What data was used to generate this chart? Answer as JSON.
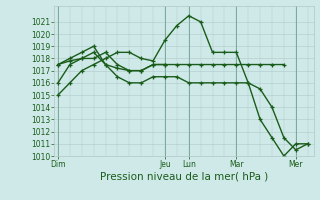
{
  "xlabel": "Pression niveau de la mer( hPa )",
  "bg_color": "#cee9e8",
  "grid_color": "#b0c8c8",
  "line_color": "#1a5c1a",
  "ylim": [
    1010,
    1022
  ],
  "yticks": [
    1010,
    1011,
    1012,
    1013,
    1014,
    1015,
    1016,
    1017,
    1018,
    1019,
    1020,
    1021
  ],
  "day_labels": [
    "Dim",
    "Jeu",
    "Lun",
    "Mar",
    "Mer"
  ],
  "day_tick_x": [
    0,
    9,
    11,
    15,
    20
  ],
  "vline_x": [
    0,
    9,
    11,
    15,
    20
  ],
  "n_points": 22,
  "lines": [
    {
      "x": [
        0,
        1,
        2,
        3,
        4,
        5,
        6,
        7,
        8,
        9,
        10,
        11,
        12,
        13,
        14,
        15,
        16,
        17,
        18,
        19,
        20,
        21
      ],
      "y": [
        1015,
        1016,
        1017,
        1017.5,
        1018,
        1018.5,
        1018.5,
        1018,
        1017.8,
        1019.5,
        1020.7,
        1021.5,
        1021,
        1018.5,
        1018.5,
        1018.5,
        1016,
        1015.5,
        1014,
        1011.5,
        1010.5,
        1011
      ]
    },
    {
      "x": [
        0,
        1,
        2,
        3,
        4,
        5,
        6,
        7,
        8,
        9,
        10,
        11,
        12,
        13,
        14,
        15,
        16,
        17,
        18,
        19
      ],
      "y": [
        1016,
        1017.5,
        1018,
        1018,
        1018.5,
        1017.5,
        1017,
        1017,
        1017.5,
        1017.5,
        1017.5,
        1017.5,
        1017.5,
        1017.5,
        1017.5,
        1017.5,
        1017.5,
        1017.5,
        1017.5,
        1017.5
      ]
    },
    {
      "x": [
        0,
        1,
        2,
        3,
        4,
        5,
        6,
        7,
        8,
        9
      ],
      "y": [
        1017.5,
        1017.8,
        1018,
        1018.5,
        1017.5,
        1017.2,
        1017,
        1017,
        1017.5,
        1017.5
      ]
    },
    {
      "x": [
        0,
        1,
        2,
        3,
        4,
        5,
        6,
        7,
        8,
        9,
        10,
        11,
        12,
        13,
        14,
        15,
        16,
        17,
        18,
        19,
        20,
        21
      ],
      "y": [
        1017.5,
        1018,
        1018.5,
        1019,
        1017.5,
        1016.5,
        1016,
        1016,
        1016.5,
        1016.5,
        1016.5,
        1016,
        1016,
        1016,
        1016,
        1016,
        1016,
        1013,
        1011.5,
        1010,
        1011,
        1011
      ]
    }
  ],
  "marker_size": 3.5,
  "line_width": 1.0,
  "font_size_ticks": 5.5,
  "font_size_xlabel": 7.5
}
